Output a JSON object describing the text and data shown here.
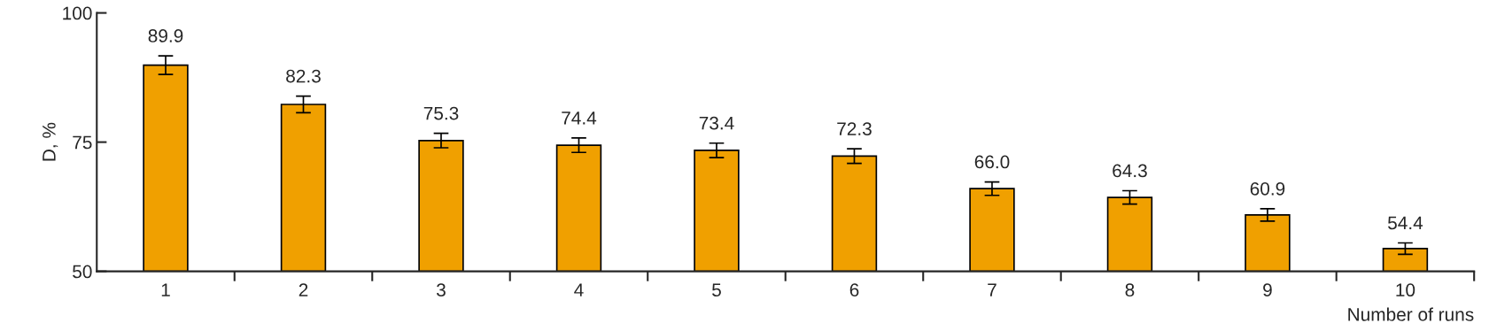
{
  "chart_data": {
    "type": "bar",
    "xlabel": "Number of runs",
    "ylabel": "D, %",
    "categories": [
      "1",
      "2",
      "3",
      "4",
      "5",
      "6",
      "7",
      "8",
      "9",
      "10"
    ],
    "values": [
      89.9,
      82.3,
      75.3,
      74.4,
      73.4,
      72.3,
      66.0,
      64.3,
      60.9,
      54.4
    ],
    "errors": [
      1.8,
      1.6,
      1.4,
      1.4,
      1.4,
      1.4,
      1.3,
      1.3,
      1.2,
      1.1
    ],
    "value_labels": [
      "89.9",
      "82.3",
      "75.3",
      "74.4",
      "73.4",
      "72.3",
      "66.0",
      "64.3",
      "60.9",
      "54.4"
    ],
    "color": "#f0a000",
    "ylim": [
      50,
      100
    ],
    "yticks": [
      50,
      75,
      100
    ],
    "grid": false
  }
}
